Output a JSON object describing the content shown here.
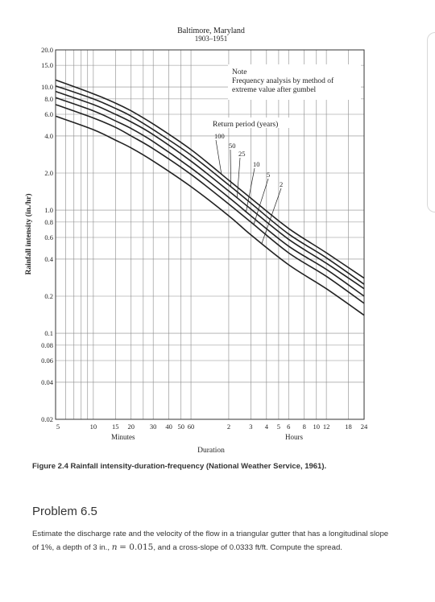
{
  "chart_data": {
    "type": "line",
    "title": "Baltimore, Maryland",
    "subtitle": "1903–1951",
    "xlabel": "Duration",
    "ylabel": "Rainfall intensity (in./hr)",
    "x_unit_minutes_label": "Minutes",
    "x_unit_hours_label": "Hours",
    "xscale": "log",
    "yscale": "log",
    "xlim_minutes": [
      5,
      1440
    ],
    "ylim": [
      0.02,
      20.0
    ],
    "grid": true,
    "y_ticks": [
      "0.02",
      "0.04",
      "0.06",
      "0.08",
      "0.1",
      "0.2",
      "0.4",
      "0.6",
      "0.8",
      "1.0",
      "2.0",
      "4.0",
      "6.0",
      "8.0",
      "10.0",
      "15.0",
      "20.0"
    ],
    "y_tick_values": [
      0.02,
      0.04,
      0.06,
      0.08,
      0.1,
      0.2,
      0.4,
      0.6,
      0.8,
      1.0,
      2.0,
      4.0,
      6.0,
      8.0,
      10.0,
      15.0,
      20.0
    ],
    "x_ticks_minutes": [
      "5",
      "10",
      "15",
      "20",
      "30",
      "40",
      "50",
      "60"
    ],
    "x_ticks_minutes_values": [
      5,
      10,
      15,
      20,
      30,
      40,
      50,
      60
    ],
    "x_ticks_hours": [
      "2",
      "3",
      "4",
      "5",
      "6",
      "8",
      "10",
      "12",
      "18",
      "24"
    ],
    "x_ticks_hours_values": [
      2,
      3,
      4,
      5,
      6,
      8,
      10,
      12,
      18,
      24
    ],
    "note_title": "Note",
    "note_lines": [
      "Frequency analysis by method of",
      "extreme value after gumbel"
    ],
    "legend_title": "Return period (years)",
    "series": [
      {
        "name": "100",
        "x_minutes": [
          5,
          10,
          15,
          20,
          30,
          60,
          120,
          180,
          360,
          720,
          1440
        ],
        "values": [
          11.4,
          8.8,
          7.4,
          6.4,
          5.0,
          3.1,
          1.75,
          1.25,
          0.71,
          0.45,
          0.28
        ]
      },
      {
        "name": "50",
        "x_minutes": [
          5,
          10,
          15,
          20,
          30,
          60,
          120,
          180,
          360,
          720,
          1440
        ],
        "values": [
          10.2,
          8.0,
          6.7,
          5.8,
          4.5,
          2.8,
          1.6,
          1.14,
          0.64,
          0.41,
          0.25
        ]
      },
      {
        "name": "25",
        "x_minutes": [
          5,
          10,
          15,
          20,
          30,
          60,
          120,
          180,
          360,
          720,
          1440
        ],
        "values": [
          9.2,
          7.2,
          6.0,
          5.2,
          4.1,
          2.5,
          1.43,
          1.02,
          0.58,
          0.37,
          0.23
        ]
      },
      {
        "name": "10",
        "x_minutes": [
          5,
          10,
          15,
          20,
          30,
          60,
          120,
          180,
          360,
          720,
          1440
        ],
        "values": [
          8.2,
          6.4,
          5.3,
          4.6,
          3.6,
          2.2,
          1.27,
          0.9,
          0.51,
          0.33,
          0.2
        ]
      },
      {
        "name": "5",
        "x_minutes": [
          5,
          10,
          15,
          20,
          30,
          60,
          120,
          180,
          360,
          720,
          1440
        ],
        "values": [
          7.2,
          5.6,
          4.7,
          4.0,
          3.15,
          1.95,
          1.12,
          0.8,
          0.45,
          0.29,
          0.175
        ]
      },
      {
        "name": "2",
        "x_minutes": [
          5,
          10,
          15,
          20,
          30,
          60,
          120,
          180,
          360,
          720,
          1440
        ],
        "values": [
          5.8,
          4.5,
          3.7,
          3.2,
          2.5,
          1.55,
          0.9,
          0.63,
          0.36,
          0.23,
          0.14
        ]
      }
    ]
  },
  "figure_caption": "Figure 2.4   Rainfall intensity-duration-frequency (National Weather Service, 1961).",
  "problem": {
    "title": "Problem 6.5",
    "line1": "Estimate the discharge rate and the velocity of the flow in a triangular gutter that has a longitudinal slope",
    "line2_a": "of 1%, a depth of 3 in.,",
    "n_symbol": "n",
    "n_value": "= 0.015",
    "line2_b": ", and a cross-slope of 0.0333 ft/ft. Compute the spread."
  }
}
